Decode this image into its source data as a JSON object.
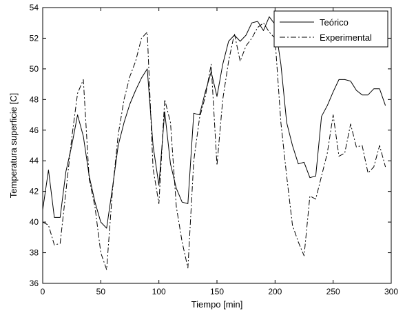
{
  "chart_data": {
    "type": "line",
    "xlabel": "Tiempo [min]",
    "ylabel": "Temperatura superficie [C]",
    "xlim": [
      0,
      300
    ],
    "ylim": [
      36,
      54
    ],
    "xticks": [
      0,
      50,
      100,
      150,
      200,
      250,
      300
    ],
    "yticks": [
      36,
      38,
      40,
      42,
      44,
      46,
      48,
      50,
      52,
      54
    ],
    "grid": false,
    "legend": "top-right",
    "series": [
      {
        "name": "Teórico",
        "style": "solid",
        "color": "#000000",
        "x": [
          0,
          5,
          10,
          15,
          20,
          25,
          30,
          35,
          40,
          45,
          50,
          55,
          60,
          65,
          70,
          75,
          80,
          85,
          90,
          95,
          100,
          105,
          110,
          115,
          120,
          125,
          130,
          135,
          140,
          145,
          150,
          155,
          160,
          165,
          170,
          175,
          180,
          185,
          190,
          195,
          200,
          205,
          210,
          215,
          220,
          225,
          230,
          235,
          240,
          245,
          250,
          255,
          260,
          265,
          270,
          275,
          280,
          285,
          290,
          295
        ],
        "y": [
          40.8,
          43.4,
          40.3,
          40.3,
          43.3,
          45.0,
          47.0,
          45.6,
          43.0,
          41.3,
          40.0,
          39.6,
          42.2,
          45.0,
          46.5,
          47.7,
          48.6,
          49.4,
          50.0,
          45.0,
          42.4,
          47.2,
          43.8,
          42.2,
          41.3,
          41.2,
          47.1,
          47.0,
          48.5,
          49.8,
          48.2,
          50.3,
          51.8,
          52.2,
          51.8,
          52.2,
          53.0,
          53.1,
          52.5,
          53.4,
          52.9,
          50.3,
          46.5,
          45.0,
          43.8,
          43.9,
          42.9,
          43.0,
          46.9,
          47.6,
          48.5,
          49.3,
          49.3,
          49.2,
          48.6,
          48.3,
          48.3,
          48.7,
          48.7,
          47.6
        ]
      },
      {
        "name": "Experimental",
        "style": "dash-dot",
        "color": "#000000",
        "x": [
          0,
          5,
          10,
          15,
          20,
          25,
          30,
          35,
          40,
          45,
          50,
          55,
          60,
          65,
          70,
          75,
          80,
          85,
          90,
          95,
          100,
          105,
          110,
          115,
          120,
          125,
          130,
          135,
          140,
          145,
          150,
          155,
          160,
          165,
          170,
          175,
          180,
          185,
          190,
          195,
          200,
          205,
          210,
          215,
          220,
          225,
          230,
          235,
          240,
          245,
          250,
          255,
          260,
          265,
          270,
          275,
          280,
          285,
          290,
          295
        ],
        "y": [
          40.0,
          39.8,
          38.5,
          38.6,
          42.0,
          45.5,
          48.4,
          49.3,
          42.8,
          41.0,
          38.0,
          36.9,
          42.0,
          45.7,
          48.0,
          49.5,
          50.5,
          52.0,
          52.4,
          43.5,
          41.2,
          48.0,
          46.5,
          41.0,
          38.7,
          37.0,
          44.0,
          46.8,
          48.2,
          50.3,
          43.7,
          48.0,
          50.5,
          52.3,
          50.5,
          51.5,
          52.0,
          52.7,
          53.0,
          52.4,
          52.0,
          46.5,
          43.0,
          39.8,
          38.7,
          37.8,
          41.7,
          41.5,
          43.0,
          44.5,
          47.0,
          44.3,
          44.5,
          46.4,
          44.9,
          45.0,
          43.2,
          43.6,
          45.0,
          43.6
        ]
      }
    ]
  }
}
